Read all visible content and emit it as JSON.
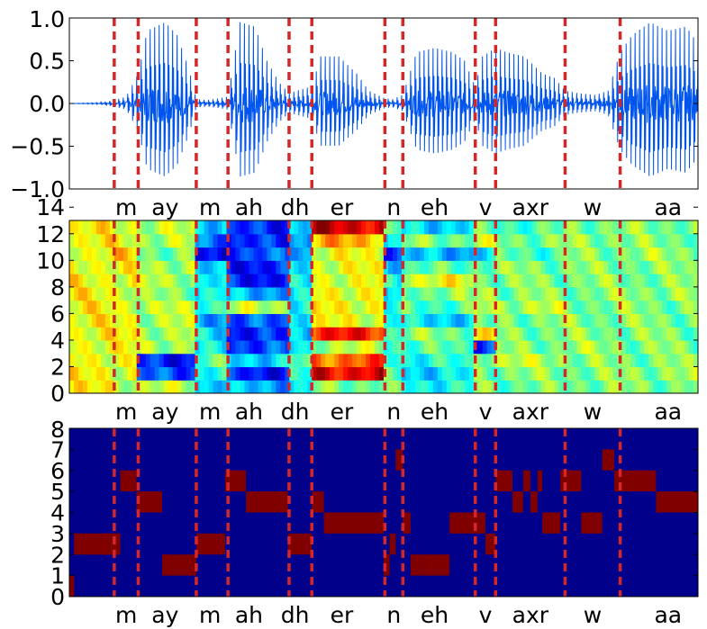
{
  "figure": {
    "phoneme_boundaries": [
      0.75,
      1.15,
      2.12,
      2.65,
      3.67,
      4.05,
      5.27,
      5.57,
      6.78,
      7.12,
      8.28,
      9.2
    ],
    "phonemes": [
      {
        "label": "m",
        "center": 0.95
      },
      {
        "label": "ay",
        "center": 1.6
      },
      {
        "label": "m",
        "center": 2.35
      },
      {
        "label": "ah",
        "center": 3.0
      },
      {
        "label": "dh",
        "center": 3.77
      },
      {
        "label": "er",
        "center": 4.55
      },
      {
        "label": "n",
        "center": 5.42
      },
      {
        "label": "eh",
        "center": 6.1
      },
      {
        "label": "v",
        "center": 6.95
      },
      {
        "label": "axr",
        "center": 7.7
      },
      {
        "label": "w",
        "center": 8.74
      },
      {
        "label": "aa",
        "center": 10.0
      }
    ],
    "colors": {
      "waveform": "#0055ee",
      "boundary": "#d62728",
      "discrete_background": "#00008b",
      "discrete_active": "#800000"
    }
  },
  "chart_data": [
    {
      "type": "line",
      "panel": "waveform",
      "xlim": [
        0,
        10.5
      ],
      "ylim": [
        -1.0,
        1.0
      ],
      "yticks": [
        "1.0",
        "0.5",
        "0.0",
        "−0.5",
        "−1.0"
      ],
      "ytick_values": [
        1.0,
        0.5,
        0.0,
        -0.5,
        -1.0
      ],
      "envelope": {
        "x": [
          0,
          0.5,
          0.75,
          0.95,
          1.15,
          1.3,
          1.6,
          1.8,
          2.0,
          2.12,
          2.3,
          2.5,
          2.65,
          2.85,
          3.1,
          3.3,
          3.5,
          3.67,
          3.8,
          4.05,
          4.2,
          4.5,
          4.8,
          5.0,
          5.27,
          5.4,
          5.57,
          5.8,
          6.1,
          6.4,
          6.6,
          6.78,
          6.9,
          7.12,
          7.3,
          7.6,
          7.9,
          8.1,
          8.28,
          8.5,
          8.8,
          9.0,
          9.2,
          9.4,
          9.7,
          10.0,
          10.3,
          10.5
        ],
        "amplitude": [
          0.0,
          0.01,
          0.04,
          0.08,
          0.35,
          0.85,
          0.95,
          0.8,
          0.4,
          0.05,
          0.04,
          0.06,
          0.08,
          0.95,
          0.9,
          0.5,
          0.25,
          0.12,
          0.15,
          0.2,
          0.55,
          0.55,
          0.35,
          0.15,
          0.06,
          0.05,
          0.1,
          0.6,
          0.65,
          0.6,
          0.5,
          0.2,
          0.55,
          0.65,
          0.6,
          0.55,
          0.35,
          0.3,
          0.15,
          0.12,
          0.1,
          0.15,
          0.6,
          0.8,
          0.95,
          0.85,
          0.9,
          0.7
        ]
      }
    },
    {
      "type": "heatmap",
      "panel": "features",
      "xlim": [
        0,
        10.5
      ],
      "ylim": [
        0,
        13
      ],
      "yticks": [
        "0",
        "2",
        "4",
        "6",
        "8",
        "10",
        "12",
        "14"
      ],
      "ytick_values": [
        0,
        2,
        4,
        6,
        8,
        10,
        12,
        14
      ],
      "rows": 13,
      "row_profile_by_segment": [
        [
          0.62,
          0.58,
          0.55,
          0.35,
          0.3,
          0.35,
          0.5,
          0.45,
          0.4,
          0.5,
          0.48,
          0.5,
          0.5
        ],
        [
          0.62,
          0.6,
          0.2,
          0.4,
          0.15,
          0.4,
          0.9,
          0.45,
          0.35,
          0.5,
          0.5,
          0.5,
          0.52
        ],
        [
          0.62,
          0.6,
          0.15,
          0.45,
          0.35,
          0.45,
          0.78,
          0.45,
          0.4,
          0.55,
          0.55,
          0.5,
          0.5
        ],
        [
          0.62,
          0.6,
          0.55,
          0.35,
          0.2,
          0.35,
          0.55,
          0.45,
          0.45,
          0.2,
          0.5,
          0.52,
          0.5
        ],
        [
          0.62,
          0.62,
          0.55,
          0.35,
          0.15,
          0.35,
          0.85,
          0.45,
          0.5,
          0.62,
          0.5,
          0.5,
          0.5
        ],
        [
          0.62,
          0.6,
          0.55,
          0.3,
          0.2,
          0.4,
          0.6,
          0.4,
          0.35,
          0.45,
          0.5,
          0.5,
          0.5
        ],
        [
          0.62,
          0.6,
          0.55,
          0.45,
          0.55,
          0.4,
          0.62,
          0.38,
          0.45,
          0.55,
          0.55,
          0.5,
          0.5
        ],
        [
          0.62,
          0.6,
          0.5,
          0.4,
          0.3,
          0.35,
          0.62,
          0.3,
          0.5,
          0.55,
          0.5,
          0.5,
          0.52
        ],
        [
          0.62,
          0.6,
          0.55,
          0.35,
          0.15,
          0.35,
          0.6,
          0.4,
          0.6,
          0.5,
          0.5,
          0.5,
          0.5
        ],
        [
          0.62,
          0.6,
          0.55,
          0.3,
          0.15,
          0.35,
          0.6,
          0.35,
          0.45,
          0.5,
          0.5,
          0.5,
          0.5
        ],
        [
          0.62,
          0.65,
          0.5,
          0.1,
          0.2,
          0.3,
          0.6,
          0.2,
          0.3,
          0.35,
          0.45,
          0.5,
          0.52
        ],
        [
          0.62,
          0.6,
          0.55,
          0.25,
          0.15,
          0.3,
          0.7,
          0.35,
          0.5,
          0.55,
          0.5,
          0.52,
          0.5
        ],
        [
          0.62,
          0.6,
          0.55,
          0.35,
          0.15,
          0.35,
          0.92,
          0.45,
          0.35,
          0.45,
          0.45,
          0.5,
          0.5
        ]
      ]
    },
    {
      "type": "heatmap",
      "panel": "discrete_states",
      "xlim": [
        0,
        10.5
      ],
      "ylim": [
        0,
        8
      ],
      "yticks": [
        "0",
        "1",
        "2",
        "3",
        "4",
        "5",
        "6",
        "7",
        "8"
      ],
      "ytick_values": [
        0,
        1,
        2,
        3,
        4,
        5,
        6,
        7,
        8
      ],
      "active_segments": [
        {
          "x0": 0.0,
          "x1": 0.08,
          "state": 0
        },
        {
          "x0": 0.08,
          "x1": 0.55,
          "state": 2
        },
        {
          "x0": 0.55,
          "x1": 0.85,
          "state": 2
        },
        {
          "x0": 0.55,
          "x1": 0.85,
          "state": 2
        },
        {
          "x0": 0.85,
          "x1": 0.85,
          "state": 2
        },
        {
          "x0": 0.08,
          "x1": 0.55,
          "state": 2
        },
        {
          "x0": 0.55,
          "x1": 0.55,
          "state": 2
        },
        {
          "x0": 0.55,
          "x1": 0.85,
          "state": 2
        },
        {
          "x0": 0.85,
          "x1": 0.85,
          "state": 2
        },
        {
          "x0": 0.85,
          "x1": 0.85,
          "state": 2
        },
        {
          "x0": 0.55,
          "x1": 0.85,
          "state": 2
        },
        {
          "x0": 0.58,
          "x1": 0.85,
          "state": 2
        },
        {
          "x0": 0.85,
          "x1": 1.12,
          "state": 5
        },
        {
          "x0": 1.12,
          "x1": 1.55,
          "state": 4
        },
        {
          "x0": 1.55,
          "x1": 2.12,
          "state": 1
        },
        {
          "x0": 2.12,
          "x1": 2.6,
          "state": 2
        },
        {
          "x0": 2.6,
          "x1": 2.95,
          "state": 5
        },
        {
          "x0": 2.95,
          "x1": 3.65,
          "state": 4
        },
        {
          "x0": 3.65,
          "x1": 4.05,
          "state": 2
        },
        {
          "x0": 4.05,
          "x1": 4.25,
          "state": 4
        },
        {
          "x0": 4.25,
          "x1": 5.25,
          "state": 3
        },
        {
          "x0": 5.25,
          "x1": 5.35,
          "state": 1
        },
        {
          "x0": 5.35,
          "x1": 5.45,
          "state": 2
        },
        {
          "x0": 5.45,
          "x1": 5.57,
          "state": 6
        },
        {
          "x0": 5.57,
          "x1": 5.7,
          "state": 3
        },
        {
          "x0": 5.7,
          "x1": 5.85,
          "state": 1
        },
        {
          "x0": 5.85,
          "x1": 6.35,
          "state": 1
        },
        {
          "x0": 6.35,
          "x1": 6.95,
          "state": 3
        },
        {
          "x0": 6.95,
          "x1": 7.12,
          "state": 2
        },
        {
          "x0": 7.12,
          "x1": 7.4,
          "state": 5
        },
        {
          "x0": 7.4,
          "x1": 7.58,
          "state": 4
        },
        {
          "x0": 7.58,
          "x1": 7.7,
          "state": 5
        },
        {
          "x0": 7.7,
          "x1": 7.82,
          "state": 4
        },
        {
          "x0": 7.82,
          "x1": 7.9,
          "state": 5
        },
        {
          "x0": 7.9,
          "x1": 8.2,
          "state": 3
        },
        {
          "x0": 8.2,
          "x1": 8.55,
          "state": 5
        },
        {
          "x0": 8.55,
          "x1": 8.9,
          "state": 3
        },
        {
          "x0": 8.9,
          "x1": 9.1,
          "state": 6
        },
        {
          "x0": 9.1,
          "x1": 9.8,
          "state": 5
        },
        {
          "x0": 9.8,
          "x1": 10.5,
          "state": 4
        }
      ]
    }
  ]
}
